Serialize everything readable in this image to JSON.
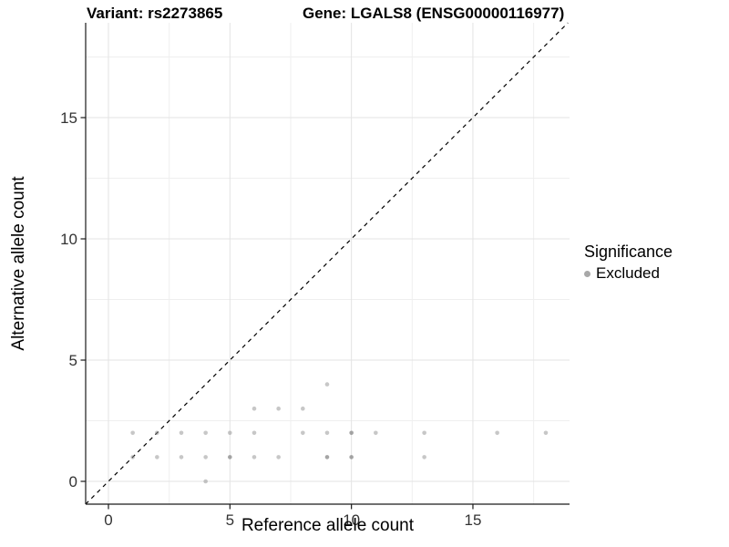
{
  "chart_data": {
    "type": "scatter",
    "title_left": "Variant: rs2273865",
    "title_right": "Gene: LGALS8 (ENSG00000116977)",
    "xlabel": "Reference allele count",
    "ylabel": "Alternative allele count",
    "x_ticks": [
      0,
      5,
      10,
      15
    ],
    "y_ticks": [
      0,
      5,
      10,
      15
    ],
    "x_minor_ticks": [
      2.5,
      7.5,
      12.5,
      17.5
    ],
    "y_minor_ticks": [
      2.5,
      7.5,
      12.5,
      17.5
    ],
    "xlim": [
      -0.94,
      18.98
    ],
    "ylim": [
      -0.94,
      18.91
    ],
    "grid": "major+minor",
    "reference_line": {
      "type": "identity y=x",
      "style": "dashed",
      "color": "#000000"
    },
    "legend": {
      "title": "Significance",
      "position": "right",
      "items": [
        {
          "label": "Excluded",
          "color": "#a8a8a8"
        }
      ]
    },
    "series": [
      {
        "name": "Excluded",
        "color": "#8f8f8f",
        "points": [
          {
            "x": 4,
            "y": 0,
            "n": 1
          },
          {
            "x": 1,
            "y": 1,
            "n": 1
          },
          {
            "x": 2,
            "y": 1,
            "n": 1
          },
          {
            "x": 3,
            "y": 1,
            "n": 1
          },
          {
            "x": 4,
            "y": 1,
            "n": 1
          },
          {
            "x": 5,
            "y": 1,
            "n": 2
          },
          {
            "x": 6,
            "y": 1,
            "n": 1
          },
          {
            "x": 7,
            "y": 1,
            "n": 1
          },
          {
            "x": 9,
            "y": 1,
            "n": 2
          },
          {
            "x": 10,
            "y": 1,
            "n": 2
          },
          {
            "x": 13,
            "y": 1,
            "n": 1
          },
          {
            "x": 1,
            "y": 2,
            "n": 1
          },
          {
            "x": 2,
            "y": 2,
            "n": 1
          },
          {
            "x": 3,
            "y": 2,
            "n": 1
          },
          {
            "x": 4,
            "y": 2,
            "n": 1
          },
          {
            "x": 5,
            "y": 2,
            "n": 1
          },
          {
            "x": 6,
            "y": 2,
            "n": 1
          },
          {
            "x": 8,
            "y": 2,
            "n": 1
          },
          {
            "x": 9,
            "y": 2,
            "n": 1
          },
          {
            "x": 10,
            "y": 2,
            "n": 2
          },
          {
            "x": 11,
            "y": 2,
            "n": 1
          },
          {
            "x": 13,
            "y": 2,
            "n": 1
          },
          {
            "x": 16,
            "y": 2,
            "n": 1
          },
          {
            "x": 18,
            "y": 2,
            "n": 1
          },
          {
            "x": 6,
            "y": 3,
            "n": 1
          },
          {
            "x": 7,
            "y": 3,
            "n": 1
          },
          {
            "x": 8,
            "y": 3,
            "n": 1
          },
          {
            "x": 9,
            "y": 4,
            "n": 1
          }
        ]
      }
    ],
    "colors": {
      "grid_major": "#e3e3e3",
      "grid_minor": "#efefef",
      "axis_line": "#1a1a1a",
      "tick_text": "#333333",
      "point": "#8f8f8f"
    }
  }
}
